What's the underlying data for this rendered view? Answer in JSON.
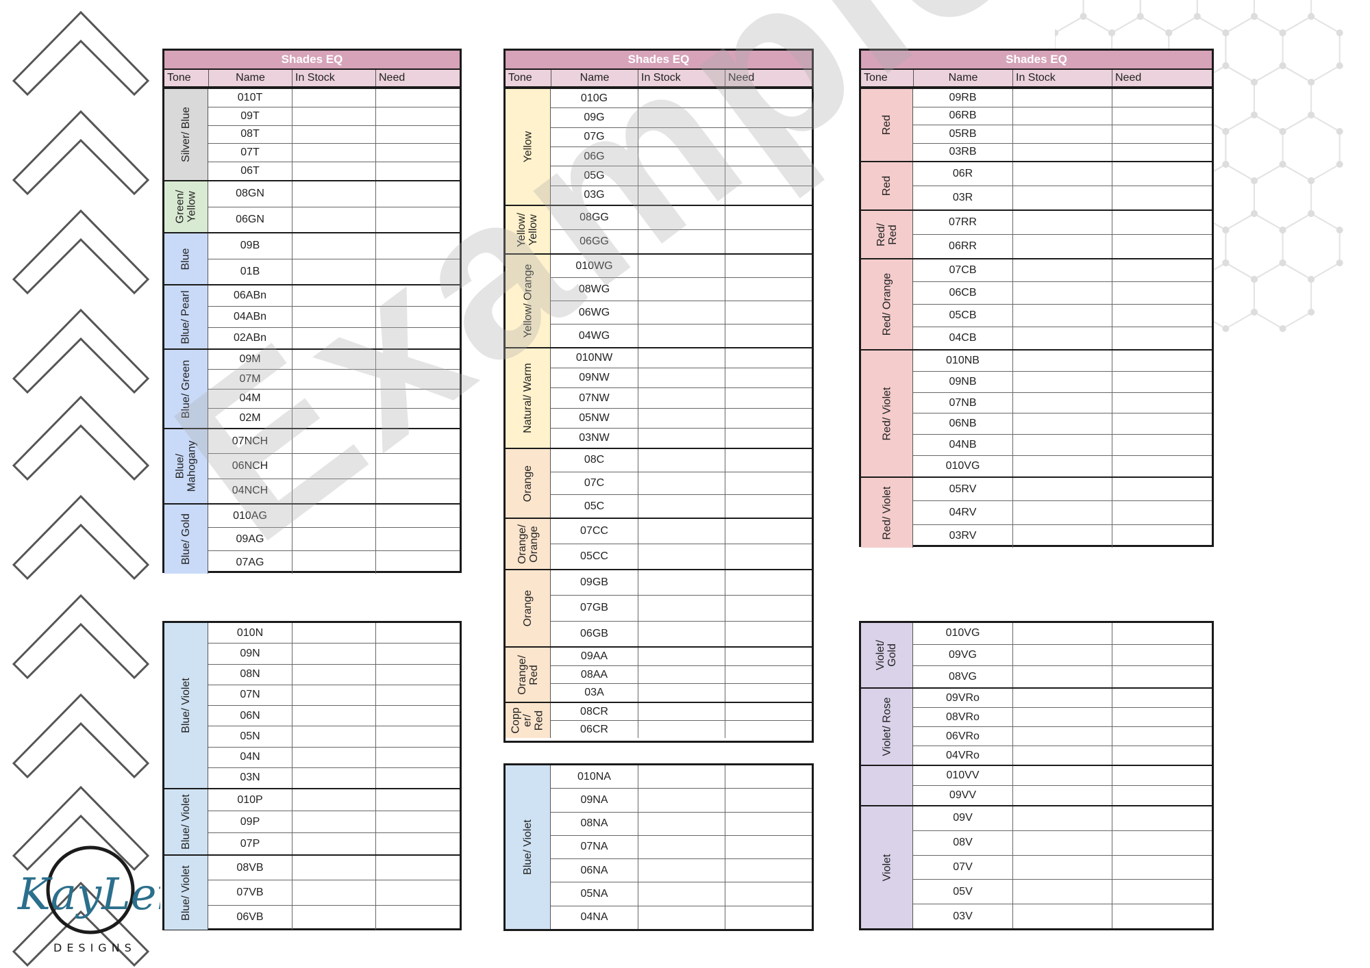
{
  "colors": {
    "title_bg": "#d6a3b8",
    "header_bg": "#ecd2dc",
    "gray": "#d9d9d9",
    "green": "#d9ead3",
    "blue": "#cfe2f3",
    "blueviolet": "#c9daf8",
    "yellow": "#fff2cc",
    "orange": "#fce5cd",
    "red": "#f4cccc",
    "violet": "#d9d2e9"
  },
  "tables": [
    {
      "title": "Shades EQ",
      "headers": [
        "Tone",
        "Name",
        "In Stock",
        "Need"
      ],
      "groups": [
        {
          "tone": "Silver/ Blue",
          "color": "gray",
          "rows": [
            "010T",
            "09T",
            "08T",
            "07T",
            "06T"
          ]
        },
        {
          "tone": "Green/\nYellow",
          "color": "green",
          "rows": [
            "08GN",
            "06GN"
          ]
        },
        {
          "tone": "Blue",
          "color": "blueviolet",
          "rows": [
            "09B",
            "01B"
          ]
        },
        {
          "tone": "Blue/ Pearl",
          "color": "blueviolet",
          "rows": [
            "06ABn",
            "04ABn",
            "02ABn"
          ]
        },
        {
          "tone": "Blue/ Green",
          "color": "blueviolet",
          "rows": [
            "09M",
            "07M",
            "04M",
            "02M"
          ]
        },
        {
          "tone": "Blue/\nMahogany",
          "color": "blueviolet",
          "rows": [
            "07NCH",
            "06NCH",
            "04NCH"
          ]
        },
        {
          "tone": "Blue/ Gold",
          "color": "blueviolet",
          "rows": [
            "010AG",
            "09AG",
            "07AG"
          ]
        }
      ]
    },
    {
      "title": "",
      "headers": [],
      "groups": [
        {
          "tone": "Blue/ Violet",
          "color": "blue",
          "rows": [
            "010N",
            "09N",
            "08N",
            "07N",
            "06N",
            "05N",
            "04N",
            "03N"
          ]
        },
        {
          "tone": "Blue/ Violet",
          "color": "blue",
          "rows": [
            "010P",
            "09P",
            "07P"
          ]
        },
        {
          "tone": "Blue/ Violet",
          "color": "blue",
          "rows": [
            "08VB",
            "07VB",
            "06VB"
          ]
        }
      ]
    },
    {
      "title": "Shades EQ",
      "headers": [
        "Tone",
        "Name",
        "In Stock",
        "Need"
      ],
      "groups": [
        {
          "tone": "Yellow",
          "color": "yellow",
          "rows": [
            "010G",
            "09G",
            "07G",
            "06G",
            "05G",
            "03G"
          ]
        },
        {
          "tone": "Yellow/\nYellow",
          "color": "yellow",
          "rows": [
            "08GG",
            "06GG"
          ]
        },
        {
          "tone": "Yellow/ Orange",
          "color": "yellow",
          "rows": [
            "010WG",
            "08WG",
            "06WG",
            "04WG"
          ]
        },
        {
          "tone": "Natural/ Warm",
          "color": "yellow",
          "rows": [
            "010NW",
            "09NW",
            "07NW",
            "05NW",
            "03NW"
          ]
        },
        {
          "tone": "Orange",
          "color": "orange",
          "rows": [
            "08C",
            "07C",
            "05C"
          ]
        },
        {
          "tone": "Orange/\nOrange",
          "color": "orange",
          "rows": [
            "07CC",
            "05CC"
          ]
        },
        {
          "tone": "Orange",
          "color": "orange",
          "rows": [
            "09GB",
            "07GB",
            "06GB"
          ]
        },
        {
          "tone": "Orange/\nRed",
          "color": "orange",
          "rows": [
            "09AA",
            "08AA",
            "03A"
          ]
        },
        {
          "tone": "Copp\ner/\nRed",
          "color": "orange",
          "rows": [
            "08CR",
            "06CR"
          ]
        }
      ]
    },
    {
      "title": "",
      "headers": [],
      "groups": [
        {
          "tone": "Blue/ Violet",
          "color": "blue",
          "rows": [
            "010NA",
            "09NA",
            "08NA",
            "07NA",
            "06NA",
            "05NA",
            "04NA"
          ]
        }
      ]
    },
    {
      "title": "Shades EQ",
      "headers": [
        "Tone",
        "Name",
        "In Stock",
        "Need"
      ],
      "groups": [
        {
          "tone": "Red",
          "color": "red",
          "rows": [
            "09RB",
            "06RB",
            "05RB",
            "03RB"
          ]
        },
        {
          "tone": "Red",
          "color": "red",
          "rows": [
            "06R",
            "03R"
          ]
        },
        {
          "tone": "Red/\nRed",
          "color": "red",
          "rows": [
            "07RR",
            "06RR"
          ]
        },
        {
          "tone": "Red/ Orange",
          "color": "red",
          "rows": [
            "07CB",
            "06CB",
            "05CB",
            "04CB"
          ]
        },
        {
          "tone": "Red/ Violet",
          "color": "red",
          "rows": [
            "010NB",
            "09NB",
            "07NB",
            "06NB",
            "04NB",
            "010VG"
          ]
        },
        {
          "tone": "Red/ Violet",
          "color": "red",
          "rows": [
            "05RV",
            "04RV",
            "03RV"
          ]
        }
      ]
    },
    {
      "title": "",
      "headers": [],
      "groups": [
        {
          "tone": "Violet/\nGold",
          "color": "violet",
          "rows": [
            "010VG",
            "09VG",
            "08VG"
          ]
        },
        {
          "tone": "Violet/ Rose",
          "color": "violet",
          "rows": [
            "09VRo",
            "08VRo",
            "06VRo",
            "04VRo"
          ]
        },
        {
          "tone": "",
          "color": "violet",
          "rows": [
            "010VV",
            "09VV"
          ]
        },
        {
          "tone": "Violet",
          "color": "violet",
          "rows": [
            "09V",
            "08V",
            "07V",
            "05V",
            "03V"
          ]
        }
      ]
    }
  ],
  "watermark": "Example",
  "logo": {
    "script": "KayLei",
    "sub": "DESIGNS"
  }
}
